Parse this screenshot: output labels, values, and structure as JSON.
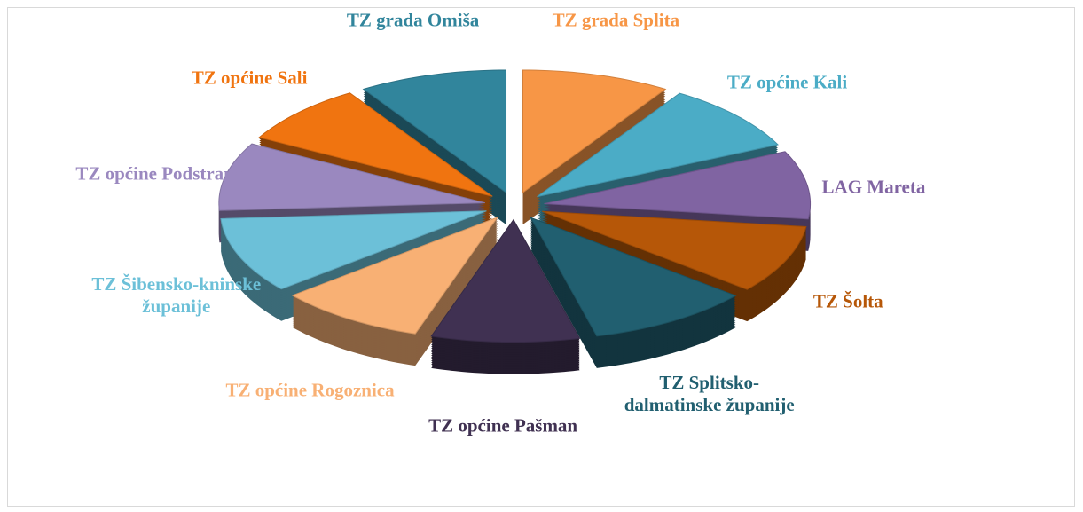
{
  "chart_data": {
    "type": "pie",
    "categories": [
      "TZ grada Splita",
      "TZ općine Kali",
      "LAG Mareta",
      "TZ Šolta",
      "TZ Splitsko-dalmatinske županije",
      "TZ općine Pašman",
      "TZ općine Rogoznica",
      "TZ Šibensko-kninske županije",
      "TZ općine Podstrana",
      "TZ općine Sali",
      "TZ grada Omiša"
    ],
    "values": [
      9,
      9,
      9,
      9,
      10,
      9,
      9,
      10,
      9,
      8,
      9
    ],
    "colors": [
      "#f79646",
      "#4bacc6",
      "#8064a2",
      "#b65708",
      "#215f70",
      "#403152",
      "#f8b074",
      "#6cc0d8",
      "#9a88bf",
      "#f07410",
      "#31859c"
    ]
  }
}
